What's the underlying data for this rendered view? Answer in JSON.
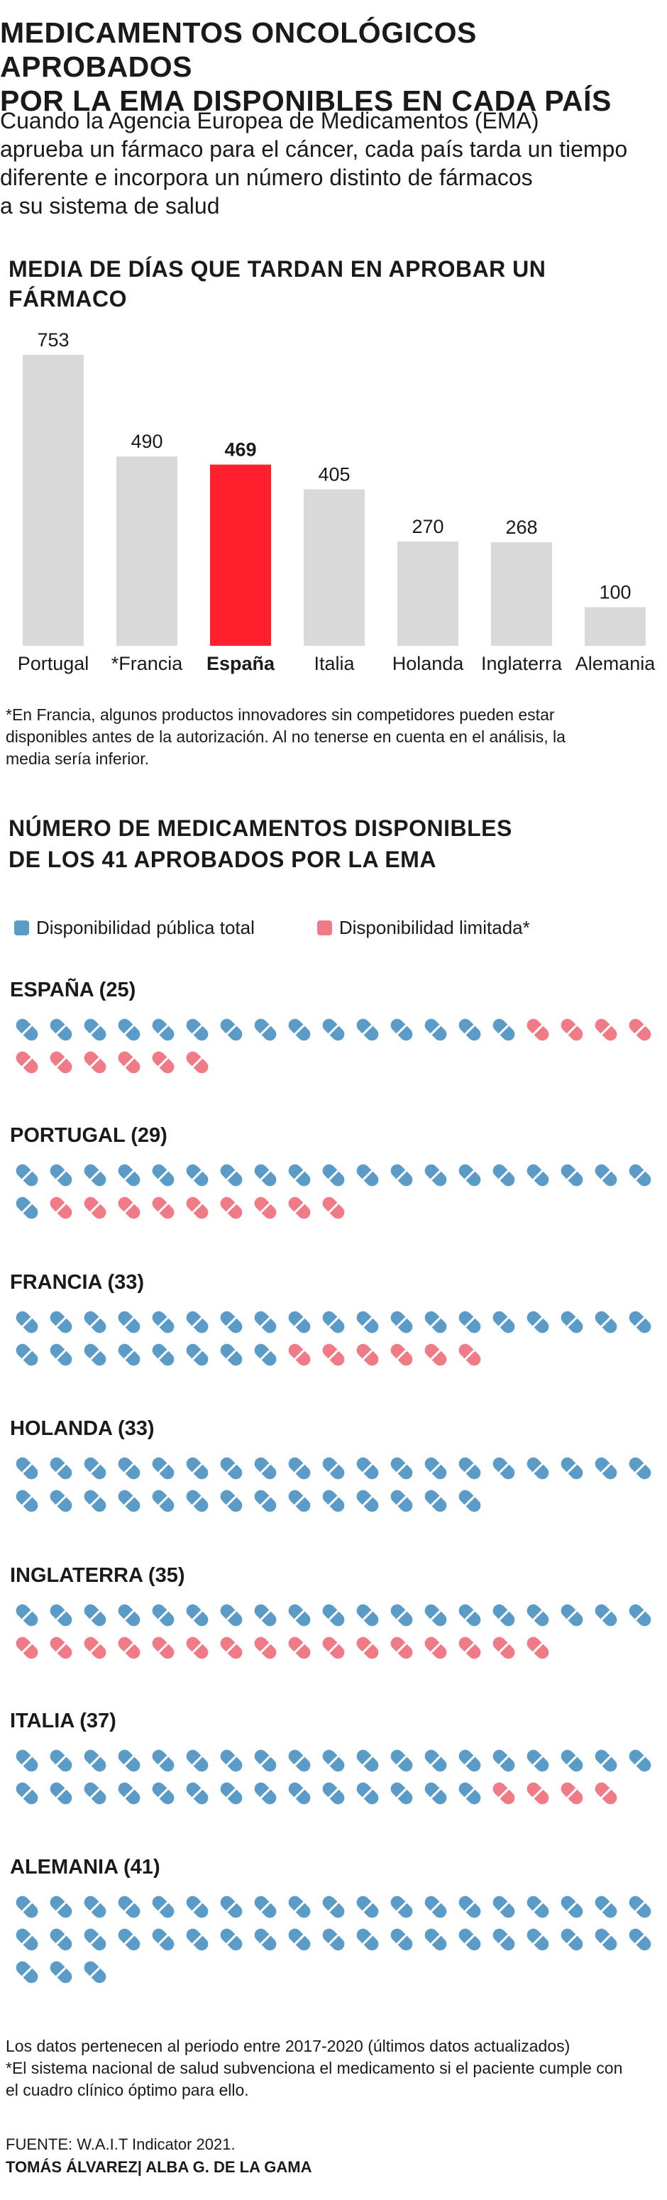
{
  "header": {
    "title_line1": "MEDICAMENTOS ONCOLÓGICOS APROBADOS",
    "title_line2": "POR LA EMA DISPONIBLES EN CADA PAÍS",
    "subtitle_line1": "Cuando la Agencia Europea de Medicamentos (EMA)",
    "subtitle_line2": "aprueba un fármaco para el cáncer, cada país tarda un tiempo",
    "subtitle_line3": "diferente e incorpora un número distinto de fármacos",
    "subtitle_line4": "a su sistema de salud"
  },
  "colors": {
    "bar_default": "#d9d9d9",
    "bar_highlight": "#ff1f2d",
    "pill_public": "#5b9bc8",
    "pill_limited": "#f07a85"
  },
  "chart_data": [
    {
      "type": "bar",
      "title": "MEDIA DE DÍAS QUE TARDAN EN APROBAR UN FÁRMACO",
      "categories": [
        "Portugal",
        "*Francia",
        "España",
        "Italia",
        "Holanda",
        "Inglaterra",
        "Alemania"
      ],
      "values": [
        753,
        490,
        469,
        405,
        270,
        268,
        100
      ],
      "highlight": "España",
      "ylim": [
        0,
        753
      ]
    },
    {
      "type": "pictogram",
      "title_line1": "NÚMERO DE MEDICAMENTOS DISPONIBLES",
      "title_line2": "DE LOS 41 APROBADOS POR LA EMA",
      "legend": [
        "Disponibilidad pública total",
        "Disponibilidad limitada*"
      ],
      "series": [
        {
          "name": "ESPAÑA (25)",
          "public": 15,
          "limited": 10
        },
        {
          "name": "PORTUGAL (29)",
          "public": 20,
          "limited": 9
        },
        {
          "name": "FRANCIA (33)",
          "public": 27,
          "limited": 6
        },
        {
          "name": "HOLANDA (33)",
          "public": 33,
          "limited": 0
        },
        {
          "name": "INGLATERRA (35)",
          "public": 19,
          "limited": 16
        },
        {
          "name": "ITALIA (37)",
          "public": 33,
          "limited": 4
        },
        {
          "name": "ALEMANIA (41)",
          "public": 41,
          "limited": 0
        }
      ]
    }
  ],
  "notes": {
    "france_line1": "*En Francia, algunos productos innovadores sin competidores pueden estar",
    "france_line2": "disponibles antes de la autorización. Al no tenerse en cuenta en el análisis, la",
    "france_line3": "media sería inferior.",
    "data_period": "Los datos pertenecen al periodo entre 2017-2020 (últimos datos actualizados)",
    "subsidy_line1": "*El sistema nacional de salud subvenciona el medicamento si el paciente cumple con",
    "subsidy_line2": "el cuadro clínico óptimo para ello.",
    "source": "FUENTE: W.A.I.T Indicator 2021.",
    "authors": "TOMÁS ÁLVAREZ| ALBA G. DE LA GAMA"
  }
}
